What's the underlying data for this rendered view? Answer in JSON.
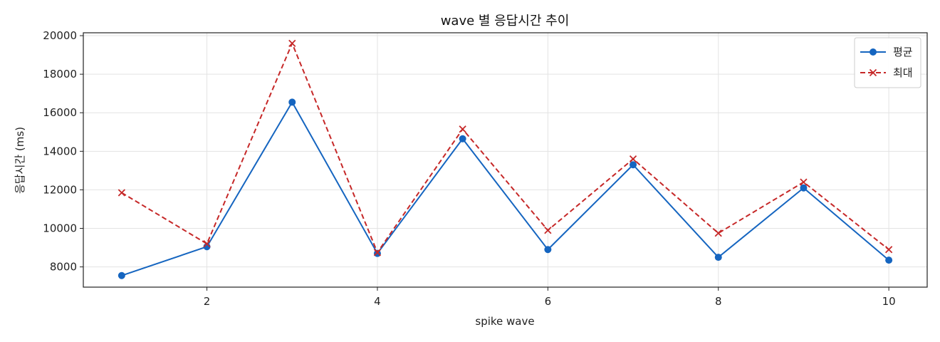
{
  "chart_data": {
    "type": "line",
    "title": "wave 별 응답시간 추이",
    "xlabel": "spike wave",
    "ylabel": "응답시간 (ms)",
    "x": [
      1,
      2,
      3,
      4,
      5,
      6,
      7,
      8,
      9,
      10
    ],
    "xlim": [
      0.55,
      10.45
    ],
    "ylim": [
      6950,
      20150
    ],
    "xticks": [
      2,
      4,
      6,
      8,
      10
    ],
    "yticks": [
      8000,
      10000,
      12000,
      14000,
      16000,
      18000,
      20000
    ],
    "grid": true,
    "legend_position": "top-right",
    "series": [
      {
        "name": "평균",
        "color": "#1565c0",
        "marker": "circle",
        "line_style": "solid",
        "values": [
          7550,
          9050,
          16550,
          8700,
          14650,
          8900,
          13300,
          8500,
          12100,
          8350
        ]
      },
      {
        "name": "최대",
        "color": "#c62828",
        "marker": "x",
        "line_style": "dashed",
        "values": [
          11850,
          9200,
          19600,
          8750,
          15150,
          9900,
          13600,
          9750,
          12400,
          8900
        ]
      }
    ]
  }
}
